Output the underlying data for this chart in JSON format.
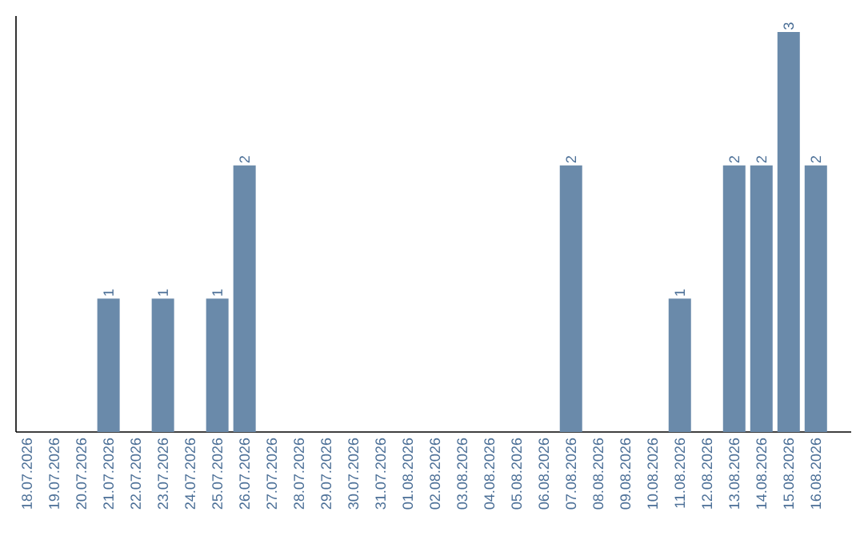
{
  "chart_data": {
    "type": "bar",
    "categories": [
      "18.07.2026",
      "19.07.2026",
      "20.07.2026",
      "21.07.2026",
      "22.07.2026",
      "23.07.2026",
      "24.07.2026",
      "25.07.2026",
      "26.07.2026",
      "27.07.2026",
      "28.07.2026",
      "29.07.2026",
      "30.07.2026",
      "31.07.2026",
      "01.08.2026",
      "02.08.2026",
      "03.08.2026",
      "04.08.2026",
      "05.08.2026",
      "06.08.2026",
      "07.08.2026",
      "08.08.2026",
      "09.08.2026",
      "10.08.2026",
      "11.08.2026",
      "12.08.2026",
      "13.08.2026",
      "14.08.2026",
      "15.08.2026",
      "16.08.2026"
    ],
    "values": [
      0,
      0,
      0,
      1,
      0,
      1,
      0,
      1,
      2,
      0,
      0,
      0,
      0,
      0,
      0,
      0,
      0,
      0,
      0,
      0,
      2,
      0,
      0,
      0,
      1,
      0,
      2,
      2,
      3,
      2
    ],
    "value_labels": [
      null,
      null,
      null,
      "1",
      null,
      "1",
      null,
      "1",
      "2",
      null,
      null,
      null,
      null,
      null,
      null,
      null,
      null,
      null,
      null,
      null,
      "2",
      null,
      null,
      null,
      "1",
      null,
      "2",
      "2",
      "3",
      "2"
    ],
    "color": "#6a8aaa",
    "tick_labels": "x"
  }
}
